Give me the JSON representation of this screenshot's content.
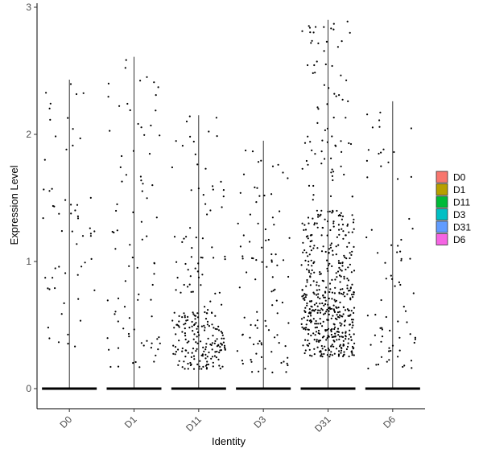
{
  "chart_data": {
    "type": "violin-jitter",
    "title": "",
    "xlabel": "Identity",
    "ylabel": "Expression Level",
    "ylim": [
      -0.15,
      3.0
    ],
    "yticks": [
      0,
      1,
      2,
      3
    ],
    "grid": false,
    "legend_position": "right",
    "categories": [
      "D0",
      "D1",
      "D11",
      "D3",
      "D31",
      "D6"
    ],
    "series": [
      {
        "name": "D0",
        "color": "#F8766D",
        "max": 2.43,
        "points": 60,
        "low": 0.25,
        "high": 2.4,
        "mode": "uniform"
      },
      {
        "name": "D1",
        "color": "#B79F00",
        "max": 2.61,
        "points": 85,
        "low": 0.15,
        "high": 2.6,
        "mode": "uniform"
      },
      {
        "name": "D11",
        "color": "#00BA38",
        "max": 2.15,
        "points": 230,
        "low": 0.12,
        "high": 2.1,
        "mode": "dense"
      },
      {
        "name": "D3",
        "color": "#00BFC4",
        "max": 1.95,
        "points": 95,
        "low": 0.12,
        "high": 1.95,
        "mode": "uniform"
      },
      {
        "name": "D31",
        "color": "#619CFF",
        "max": 2.9,
        "points": 560,
        "low": 0.25,
        "high": 2.9,
        "mode": "dense"
      },
      {
        "name": "D6",
        "color": "#F564E3",
        "max": 2.26,
        "points": 75,
        "low": 0.15,
        "high": 2.25,
        "mode": "uniform"
      }
    ]
  }
}
